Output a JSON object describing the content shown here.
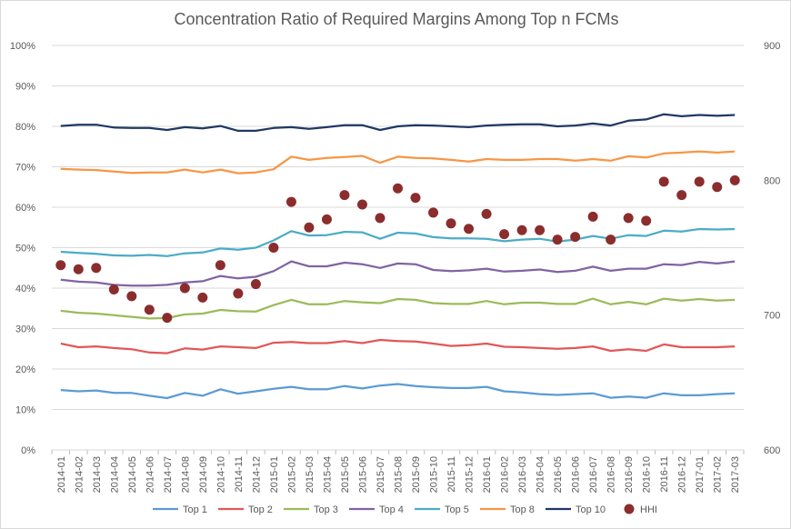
{
  "chart_data": {
    "type": "line",
    "title": "Concentration Ratio of Required Margins Among Top n FCMs",
    "categories": [
      "2014-01",
      "2014-02",
      "2014-03",
      "2014-04",
      "2014-05",
      "2014-06",
      "2014-07",
      "2014-08",
      "2014-09",
      "2014-10",
      "2014-11",
      "2014-12",
      "2015-01",
      "2015-02",
      "2015-03",
      "2015-04",
      "2015-05",
      "2015-06",
      "2015-07",
      "2015-08",
      "2015-09",
      "2015-10",
      "2015-11",
      "2015-12",
      "2016-01",
      "2016-02",
      "2016-03",
      "2016-04",
      "2016-05",
      "2016-06",
      "2016-07",
      "2016-08",
      "2016-09",
      "2016-10",
      "2016-11",
      "2016-12",
      "2017-01",
      "2017-02",
      "2017-03"
    ],
    "y_left": {
      "min": 0,
      "max": 100,
      "step": 10,
      "unit": "%",
      "ticks": [
        "0%",
        "10%",
        "20%",
        "30%",
        "40%",
        "50%",
        "60%",
        "70%",
        "80%",
        "90%",
        "100%"
      ]
    },
    "y_right": {
      "min": 600,
      "max": 900,
      "ticks": [
        "600",
        "700",
        "800",
        "900"
      ]
    },
    "grid": true,
    "legend_position": "bottom",
    "series": [
      {
        "name": "Top 1",
        "color": "#5b9bd5",
        "axis": "left",
        "values": [
          14.8,
          14.5,
          14.7,
          14.1,
          14.1,
          13.4,
          12.8,
          14.1,
          13.4,
          15.0,
          13.9,
          14.5,
          15.1,
          15.6,
          15.0,
          15.0,
          15.8,
          15.2,
          15.9,
          16.3,
          15.8,
          15.5,
          15.3,
          15.3,
          15.6,
          14.5,
          14.2,
          13.8,
          13.6,
          13.8,
          14.0,
          12.9,
          13.2,
          12.9,
          14.0,
          13.5,
          13.5,
          13.8,
          14.0
        ]
      },
      {
        "name": "Top 2",
        "color": "#e15759",
        "axis": "left",
        "values": [
          26.3,
          25.4,
          25.6,
          25.2,
          24.9,
          24.1,
          23.9,
          25.1,
          24.8,
          25.6,
          25.4,
          25.2,
          26.5,
          26.7,
          26.4,
          26.4,
          26.9,
          26.4,
          27.2,
          26.9,
          26.8,
          26.3,
          25.7,
          25.9,
          26.3,
          25.5,
          25.4,
          25.2,
          25.0,
          25.2,
          25.6,
          24.5,
          24.9,
          24.5,
          26.1,
          25.4,
          25.4,
          25.4,
          25.6
        ]
      },
      {
        "name": "Top 3",
        "color": "#9bbb59",
        "axis": "left",
        "values": [
          34.4,
          33.9,
          33.7,
          33.3,
          32.9,
          32.5,
          32.6,
          33.5,
          33.7,
          34.6,
          34.3,
          34.2,
          35.8,
          37.1,
          36.0,
          36.0,
          36.8,
          36.5,
          36.3,
          37.3,
          37.1,
          36.3,
          36.1,
          36.1,
          36.8,
          36.0,
          36.4,
          36.4,
          36.1,
          36.1,
          37.4,
          36.0,
          36.6,
          36.0,
          37.4,
          36.9,
          37.3,
          36.9,
          37.1
        ]
      },
      {
        "name": "Top 4",
        "color": "#8064a2",
        "axis": "left",
        "values": [
          42.1,
          41.6,
          41.4,
          40.8,
          40.6,
          40.6,
          40.8,
          41.4,
          41.7,
          43.0,
          42.4,
          42.8,
          44.2,
          46.6,
          45.4,
          45.4,
          46.3,
          45.9,
          45.0,
          46.1,
          45.9,
          44.5,
          44.2,
          44.4,
          44.8,
          44.1,
          44.3,
          44.6,
          44.0,
          44.3,
          45.3,
          44.3,
          44.8,
          44.8,
          45.9,
          45.7,
          46.5,
          46.1,
          46.6
        ]
      },
      {
        "name": "Top 5",
        "color": "#4bacc6",
        "axis": "left",
        "values": [
          49.0,
          48.7,
          48.5,
          48.1,
          48.0,
          48.2,
          47.9,
          48.6,
          48.8,
          49.8,
          49.5,
          50.0,
          51.8,
          54.1,
          53.0,
          53.1,
          53.9,
          53.8,
          52.2,
          53.7,
          53.5,
          52.6,
          52.3,
          52.3,
          52.2,
          51.6,
          52.0,
          52.2,
          51.5,
          52.0,
          52.9,
          52.2,
          53.1,
          52.9,
          54.2,
          54.0,
          54.6,
          54.5,
          54.6
        ]
      },
      {
        "name": "Top 8",
        "color": "#f79646",
        "axis": "left",
        "values": [
          69.5,
          69.3,
          69.2,
          68.8,
          68.5,
          68.6,
          68.6,
          69.3,
          68.6,
          69.3,
          68.4,
          68.6,
          69.4,
          72.5,
          71.7,
          72.2,
          72.4,
          72.7,
          71.0,
          72.5,
          72.2,
          72.1,
          71.7,
          71.3,
          71.9,
          71.7,
          71.7,
          71.9,
          71.9,
          71.5,
          71.9,
          71.5,
          72.6,
          72.3,
          73.3,
          73.5,
          73.8,
          73.5,
          73.8
        ]
      },
      {
        "name": "Top 10",
        "color": "#1f3864",
        "axis": "left",
        "values": [
          80.1,
          80.4,
          80.4,
          79.7,
          79.6,
          79.6,
          79.1,
          79.8,
          79.5,
          80.1,
          78.9,
          78.9,
          79.6,
          79.8,
          79.4,
          79.8,
          80.3,
          80.3,
          79.1,
          80.0,
          80.3,
          80.2,
          80.0,
          79.8,
          80.2,
          80.4,
          80.5,
          80.5,
          80.0,
          80.2,
          80.7,
          80.2,
          81.4,
          81.7,
          83.0,
          82.5,
          82.8,
          82.6,
          82.8
        ]
      },
      {
        "name": "HHI",
        "color": "#8b2d2d",
        "axis": "right",
        "marker": "circle",
        "values": [
          737,
          734,
          735,
          719,
          714,
          704,
          698,
          720,
          713,
          737,
          716,
          723,
          750,
          784,
          765,
          771,
          789,
          782,
          772,
          794,
          787,
          776,
          768,
          764,
          775,
          760,
          763,
          763,
          756,
          758,
          773,
          756,
          772,
          770,
          799,
          789,
          799,
          795,
          800
        ]
      }
    ]
  }
}
